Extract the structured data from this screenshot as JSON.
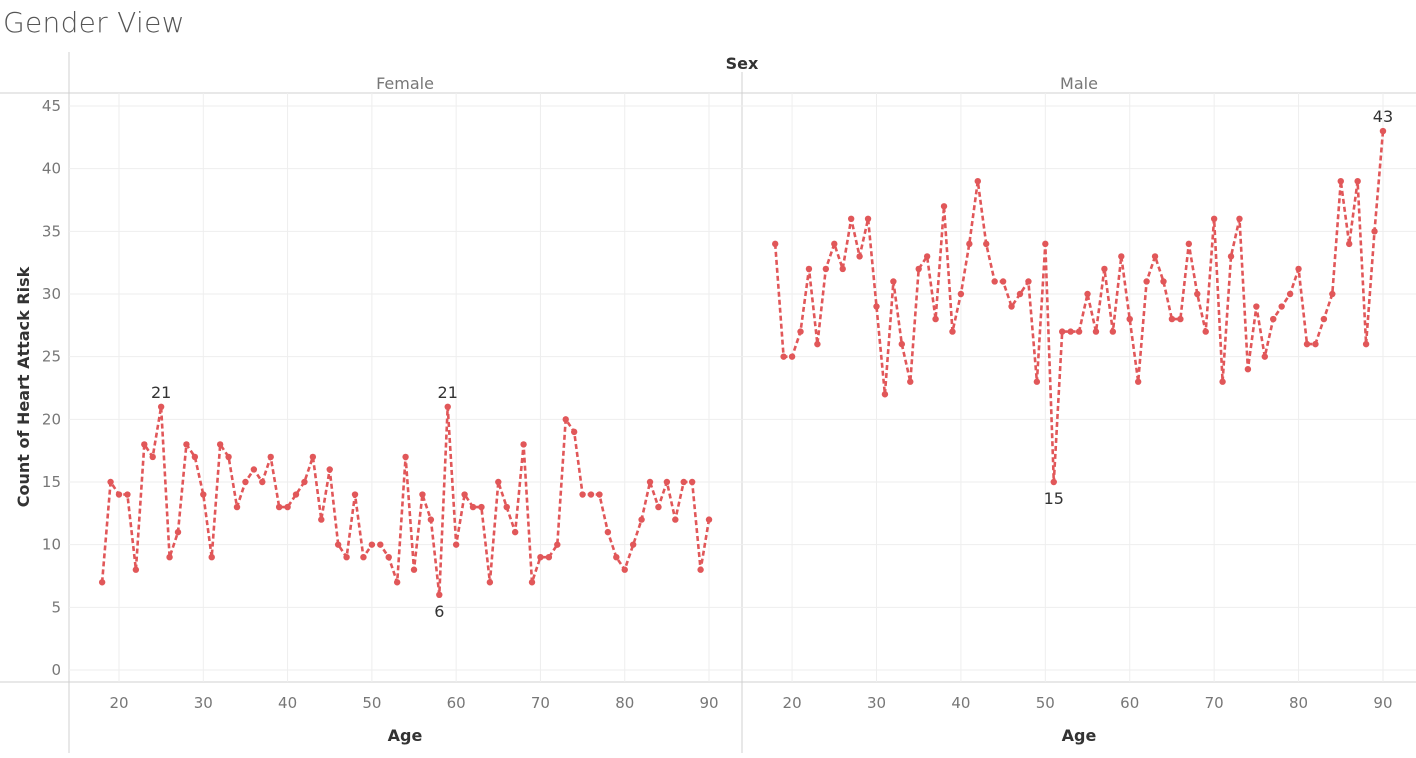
{
  "title": "Gender View",
  "chart_data": {
    "type": "line",
    "facet_label": "Sex",
    "xlabel": "Age",
    "ylabel": "Count of Heart Attack Risk",
    "ylim": [
      0,
      45
    ],
    "yticks": [
      0,
      5,
      10,
      15,
      20,
      25,
      30,
      35,
      40,
      45
    ],
    "xlim": [
      12,
      96
    ],
    "xticks": [
      20,
      30,
      40,
      50,
      60,
      70,
      80,
      90
    ],
    "grid": true,
    "line_style": "dashed",
    "line_color": "#e15759",
    "panels": [
      {
        "name": "Female",
        "x": [
          18,
          19,
          20,
          21,
          22,
          23,
          24,
          25,
          26,
          27,
          28,
          29,
          30,
          31,
          32,
          33,
          34,
          35,
          36,
          37,
          38,
          39,
          40,
          41,
          42,
          43,
          44,
          45,
          46,
          47,
          48,
          49,
          50,
          51,
          52,
          53,
          54,
          55,
          56,
          57,
          58,
          59,
          60,
          61,
          62,
          63,
          64,
          65,
          66,
          67,
          68,
          69,
          70,
          71,
          72,
          73,
          74,
          75,
          76,
          77,
          78,
          79,
          80,
          81,
          82,
          83,
          84,
          85,
          86,
          87,
          88,
          89,
          90
        ],
        "y": [
          7,
          15,
          14,
          14,
          8,
          18,
          17,
          21,
          9,
          11,
          18,
          17,
          14,
          9,
          18,
          17,
          13,
          15,
          16,
          15,
          17,
          13,
          13,
          14,
          15,
          17,
          12,
          16,
          10,
          9,
          14,
          9,
          10,
          10,
          9,
          7,
          17,
          8,
          14,
          12,
          6,
          21,
          10,
          14,
          13,
          13,
          7,
          15,
          13,
          11,
          18,
          7,
          9,
          9,
          10,
          20,
          19,
          14,
          14,
          14,
          11,
          9,
          8,
          10,
          12,
          15,
          13,
          15,
          12,
          15,
          15,
          8,
          12
        ],
        "labels": [
          {
            "x": 25,
            "y": 21,
            "text": "21",
            "pos": "above"
          },
          {
            "x": 59,
            "y": 21,
            "text": "21",
            "pos": "above"
          },
          {
            "x": 58,
            "y": 6,
            "text": "6",
            "pos": "below"
          }
        ]
      },
      {
        "name": "Male",
        "x": [
          18,
          19,
          20,
          21,
          22,
          23,
          24,
          25,
          26,
          27,
          28,
          29,
          30,
          31,
          32,
          33,
          34,
          35,
          36,
          37,
          38,
          39,
          40,
          41,
          42,
          43,
          44,
          45,
          46,
          47,
          48,
          49,
          50,
          51,
          52,
          53,
          54,
          55,
          56,
          57,
          58,
          59,
          60,
          61,
          62,
          63,
          64,
          65,
          66,
          67,
          68,
          69,
          70,
          71,
          72,
          73,
          74,
          75,
          76,
          77,
          78,
          79,
          80,
          81,
          82,
          83,
          84,
          85,
          86,
          87,
          88,
          89,
          90
        ],
        "y": [
          34,
          25,
          25,
          27,
          32,
          26,
          32,
          34,
          32,
          36,
          33,
          36,
          29,
          22,
          31,
          26,
          23,
          32,
          33,
          28,
          37,
          27,
          30,
          34,
          39,
          34,
          31,
          31,
          29,
          30,
          31,
          23,
          34,
          15,
          27,
          27,
          27,
          30,
          27,
          32,
          27,
          33,
          28,
          23,
          31,
          33,
          31,
          28,
          28,
          34,
          30,
          27,
          36,
          23,
          33,
          36,
          24,
          29,
          25,
          28,
          29,
          30,
          32,
          26,
          26,
          28,
          30,
          39,
          34,
          39,
          26,
          35,
          43
        ],
        "labels": [
          {
            "x": 51,
            "y": 15,
            "text": "15",
            "pos": "below"
          },
          {
            "x": 90,
            "y": 43,
            "text": "43",
            "pos": "above"
          }
        ]
      }
    ]
  }
}
